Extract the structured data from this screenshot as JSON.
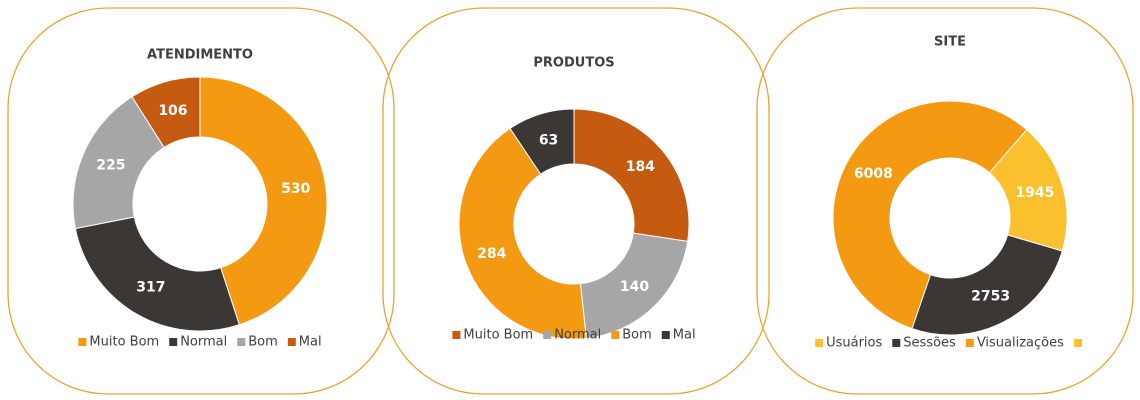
{
  "chart_data": [
    {
      "type": "donut",
      "title": "ATENDIMENTO",
      "categories": [
        "Muito Bom",
        "Normal",
        "Bom",
        "Mal"
      ],
      "values": [
        530,
        317,
        225,
        106
      ],
      "colors": [
        "#f39a12",
        "#3b3735",
        "#a6a6a6",
        "#c55a11"
      ],
      "legend": "bottom"
    },
    {
      "type": "donut",
      "title": "PRODUTOS",
      "categories": [
        "Muito Bom",
        "Normal",
        "Bom",
        "Mal"
      ],
      "values": [
        184,
        140,
        284,
        63
      ],
      "colors": [
        "#c55a11",
        "#a6a6a6",
        "#f39a12",
        "#3b3735"
      ],
      "legend": "bottom"
    },
    {
      "type": "donut",
      "title": "SITE",
      "categories": [
        "Usuários",
        "Sessões",
        "Visualizações",
        null
      ],
      "values": [
        1945,
        2753,
        6008,
        null
      ],
      "colors": [
        "#fbc02d",
        "#3b3735",
        "#f39a12",
        "#fbc02d"
      ],
      "start_angle": 41,
      "legend": "bottom"
    }
  ]
}
